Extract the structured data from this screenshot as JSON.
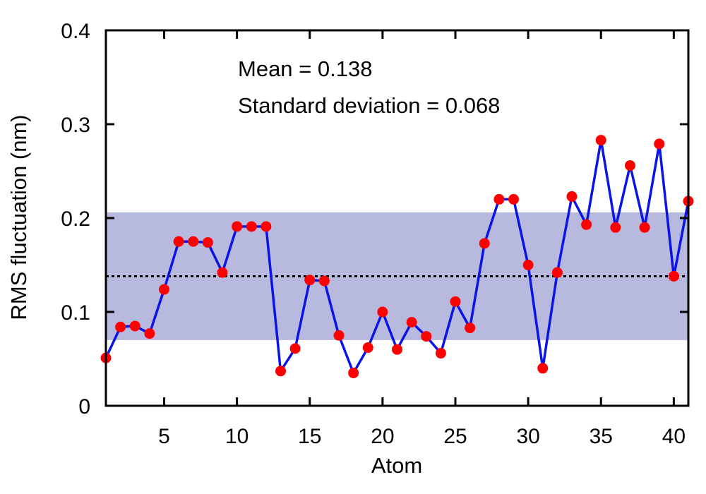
{
  "chart_data": {
    "type": "line",
    "title": "",
    "xlabel": "Atom",
    "ylabel": "RMS fluctuation (nm)",
    "xlim": [
      1,
      41
    ],
    "ylim": [
      0,
      0.4
    ],
    "x_ticks": [
      5,
      10,
      15,
      20,
      25,
      30,
      35,
      40
    ],
    "y_ticks": [
      0,
      0.1,
      0.2,
      0.3,
      0.4
    ],
    "x_tick_labels": [
      "5",
      "10",
      "15",
      "20",
      "25",
      "30",
      "35",
      "40"
    ],
    "y_tick_labels": [
      "0",
      "0.1",
      "0.2",
      "0.3",
      "0.4"
    ],
    "grid": false,
    "legend": "none",
    "annotations": [
      "Mean = 0.138",
      "Standard deviation = 0.068"
    ],
    "mean": 0.138,
    "std_dev": 0.068,
    "band": [
      0.07,
      0.206
    ],
    "colors": {
      "line": "#0a14e6",
      "marker": "#ff0000",
      "band": "#b7b9df",
      "mean_line": "#000000"
    },
    "series": [
      {
        "x": [
          1,
          2,
          3,
          4,
          5,
          6,
          7,
          8,
          9,
          10,
          11,
          12,
          13,
          14,
          15,
          16,
          17,
          18,
          19,
          20,
          21,
          22,
          23,
          24,
          25,
          26,
          27,
          28,
          29,
          30,
          31,
          32,
          33,
          34,
          35,
          36,
          37,
          38,
          39,
          40,
          41
        ],
        "values": [
          0.051,
          0.084,
          0.085,
          0.077,
          0.124,
          0.175,
          0.175,
          0.174,
          0.142,
          0.191,
          0.191,
          0.191,
          0.037,
          0.061,
          0.134,
          0.133,
          0.075,
          0.035,
          0.062,
          0.1,
          0.06,
          0.089,
          0.074,
          0.056,
          0.111,
          0.083,
          0.173,
          0.22,
          0.22,
          0.15,
          0.04,
          0.142,
          0.223,
          0.193,
          0.283,
          0.19,
          0.256,
          0.19,
          0.279,
          0.138,
          0.218
        ]
      }
    ]
  }
}
